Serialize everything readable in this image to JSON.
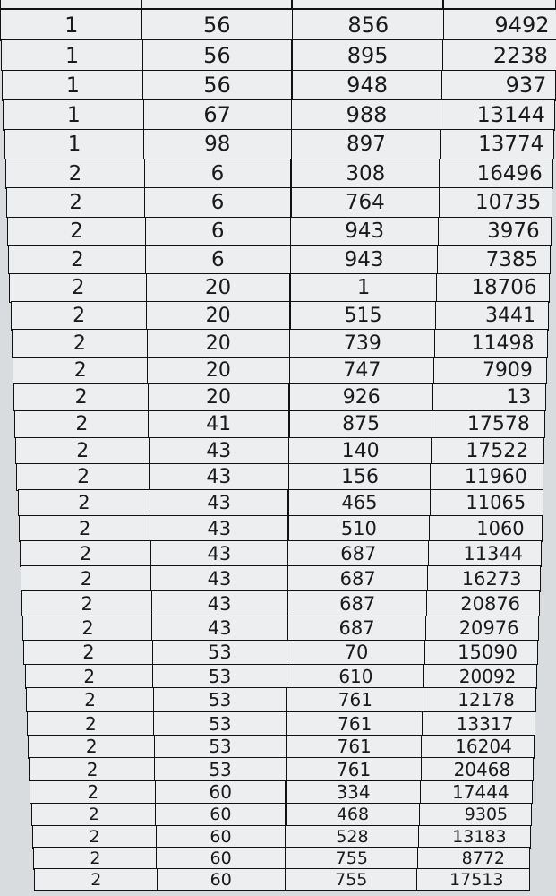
{
  "table": {
    "rows": [
      [
        "1",
        "56",
        "856",
        "9492"
      ],
      [
        "1",
        "56",
        "895",
        "2238"
      ],
      [
        "1",
        "56",
        "948",
        "937"
      ],
      [
        "1",
        "67",
        "988",
        "13144"
      ],
      [
        "1",
        "98",
        "897",
        "13774"
      ],
      [
        "2",
        "6",
        "308",
        "16496"
      ],
      [
        "2",
        "6",
        "764",
        "10735"
      ],
      [
        "2",
        "6",
        "943",
        "3976"
      ],
      [
        "2",
        "6",
        "943",
        "7385"
      ],
      [
        "2",
        "20",
        "1",
        "18706"
      ],
      [
        "2",
        "20",
        "515",
        "3441"
      ],
      [
        "2",
        "20",
        "739",
        "11498"
      ],
      [
        "2",
        "20",
        "747",
        "7909"
      ],
      [
        "2",
        "20",
        "926",
        "13"
      ],
      [
        "2",
        "41",
        "875",
        "17578"
      ],
      [
        "2",
        "43",
        "140",
        "17522"
      ],
      [
        "2",
        "43",
        "156",
        "11960"
      ],
      [
        "2",
        "43",
        "465",
        "11065"
      ],
      [
        "2",
        "43",
        "510",
        "1060"
      ],
      [
        "2",
        "43",
        "687",
        "11344"
      ],
      [
        "2",
        "43",
        "687",
        "16273"
      ],
      [
        "2",
        "43",
        "687",
        "20876"
      ],
      [
        "2",
        "43",
        "687",
        "20976"
      ],
      [
        "2",
        "53",
        "70",
        "15090"
      ],
      [
        "2",
        "53",
        "610",
        "20092"
      ],
      [
        "2",
        "53",
        "761",
        "12178"
      ],
      [
        "2",
        "53",
        "761",
        "13317"
      ],
      [
        "2",
        "53",
        "761",
        "16204"
      ],
      [
        "2",
        "53",
        "761",
        "20468"
      ],
      [
        "2",
        "60",
        "334",
        "17444"
      ],
      [
        "2",
        "60",
        "468",
        "9305"
      ],
      [
        "2",
        "60",
        "528",
        "13183"
      ],
      [
        "2",
        "60",
        "755",
        "8772"
      ],
      [
        "2",
        "60",
        "755",
        "17513"
      ]
    ]
  }
}
